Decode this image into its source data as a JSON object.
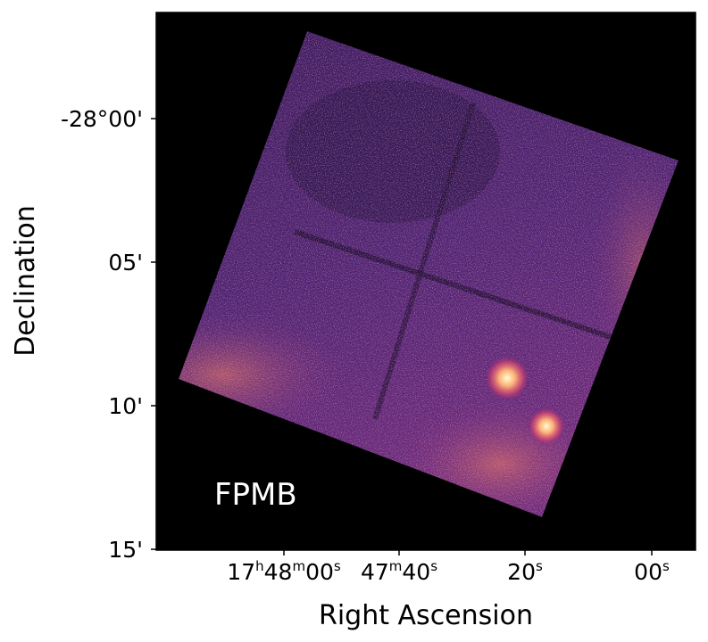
{
  "chart_data": {
    "type": "heatmap",
    "title": "",
    "panel_label": "FPMB",
    "xlabel": "Right Ascension",
    "ylabel": "Declination",
    "x_ticks": [
      {
        "h": "17",
        "m": "48",
        "s": "00"
      },
      {
        "m": "47",
        "s": "40"
      },
      {
        "s": "20"
      },
      {
        "s": "00"
      }
    ],
    "y_ticks": [
      "-28°00'",
      "05'",
      "10'",
      "15'"
    ],
    "colormap": "magma",
    "background": "#000000",
    "grid": false,
    "features": [
      {
        "name": "bright-source-1",
        "ra": "17h47m22s",
        "dec": "-28°09.3'"
      },
      {
        "name": "bright-source-2",
        "ra": "17h47m15s",
        "dec": "-28°10.8'"
      }
    ]
  }
}
